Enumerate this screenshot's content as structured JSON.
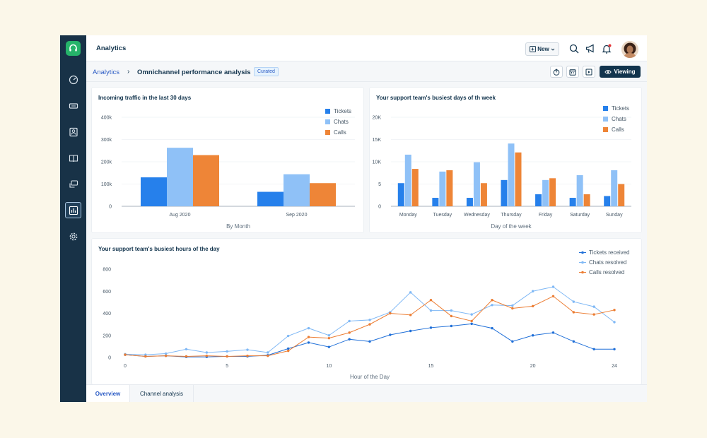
{
  "topbar": {
    "title": "Analytics",
    "new_label": "New",
    "icons": [
      "search-icon",
      "megaphone-icon",
      "bell-icon"
    ]
  },
  "breadcrumb": {
    "root": "Analytics",
    "separator": "›",
    "current": "Omnichannel performance analysis",
    "badge": "Curated"
  },
  "toolbar": {
    "viewing_label": "Viewing",
    "icons": [
      "export-icon",
      "calendar-icon",
      "present-icon"
    ]
  },
  "sidebar": {
    "items": [
      "dashboard-icon",
      "ticket-icon",
      "contacts-icon",
      "solutions-icon",
      "conversations-icon",
      "analytics-icon",
      "settings-icon"
    ]
  },
  "colors": {
    "tickets": "#2680eb",
    "chats": "#8fc1f7",
    "calls": "#ee8537",
    "ticket_line": "#1f6fd8",
    "chat_line": "#7fb8f5",
    "call_line": "#ec7d33"
  },
  "tabs": [
    {
      "label": "Overview",
      "active": true
    },
    {
      "label": "Channel analysis",
      "active": false
    }
  ],
  "chart_data": [
    {
      "id": "traffic",
      "type": "bar",
      "title": "Incoming traffic in the last 30 days",
      "xlabel": "By Month",
      "ylabel": "",
      "categories": [
        "Aug 2020",
        "Sep 2020"
      ],
      "series": [
        {
          "name": "Tickets",
          "values": [
            130000,
            65000
          ]
        },
        {
          "name": "Chats",
          "values": [
            263000,
            144000
          ]
        },
        {
          "name": "Calls",
          "values": [
            230000,
            104000
          ]
        }
      ],
      "ylim": [
        0,
        400000
      ],
      "yticks": [
        "0",
        "100k",
        "200k",
        "300k",
        "400k"
      ],
      "legend": "top-right",
      "grid": true
    },
    {
      "id": "busiest_days",
      "type": "bar",
      "title": "Your support team's busiest days of th week",
      "xlabel": "Day of the week",
      "ylabel": "",
      "categories": [
        "Monday",
        "Tuesday",
        "Wednesday",
        "Thursday",
        "Friday",
        "Saturday",
        "Sunday"
      ],
      "series": [
        {
          "name": "Tickets",
          "values": [
            5200,
            1900,
            1900,
            5900,
            2700,
            1900,
            2300
          ]
        },
        {
          "name": "Chats",
          "values": [
            11600,
            7800,
            9900,
            14100,
            5900,
            7000,
            8100
          ]
        },
        {
          "name": "Calls",
          "values": [
            8400,
            8100,
            5200,
            12100,
            6300,
            2700,
            5000
          ]
        }
      ],
      "ylim": [
        0,
        20000
      ],
      "yticks": [
        "0",
        "5",
        "10K",
        "15K",
        "20K"
      ],
      "legend": "top-right",
      "grid": true
    },
    {
      "id": "busiest_hours",
      "type": "line",
      "title": "Your support team's busiest hours of the day",
      "xlabel": "Hour of the Day",
      "ylabel": "",
      "x": [
        0,
        1,
        2,
        3,
        4,
        5,
        6,
        7,
        8,
        9,
        10,
        11,
        12,
        13,
        14,
        15,
        16,
        17,
        18,
        19,
        20,
        21,
        22,
        23,
        24
      ],
      "series": [
        {
          "name": "Tickets received",
          "values": [
            25,
            10,
            15,
            5,
            5,
            10,
            10,
            20,
            80,
            135,
            95,
            165,
            145,
            205,
            240,
            270,
            285,
            305,
            265,
            145,
            200,
            225,
            145,
            75,
            75
          ]
        },
        {
          "name": "Chats resolved",
          "values": [
            30,
            25,
            35,
            75,
            45,
            55,
            70,
            45,
            195,
            265,
            200,
            330,
            340,
            410,
            590,
            425,
            425,
            390,
            475,
            470,
            600,
            640,
            505,
            460,
            320
          ]
        },
        {
          "name": "Calls resolved",
          "values": [
            25,
            10,
            15,
            10,
            15,
            10,
            15,
            15,
            60,
            185,
            175,
            225,
            300,
            400,
            385,
            520,
            375,
            330,
            520,
            445,
            465,
            555,
            410,
            390,
            430
          ]
        }
      ],
      "xlim": [
        0,
        24
      ],
      "ylim": [
        0,
        800
      ],
      "xticks": [
        0,
        5,
        10,
        15,
        20,
        24
      ],
      "yticks": [
        0,
        200,
        400,
        600,
        800
      ],
      "legend": "top-right",
      "grid": false
    }
  ]
}
